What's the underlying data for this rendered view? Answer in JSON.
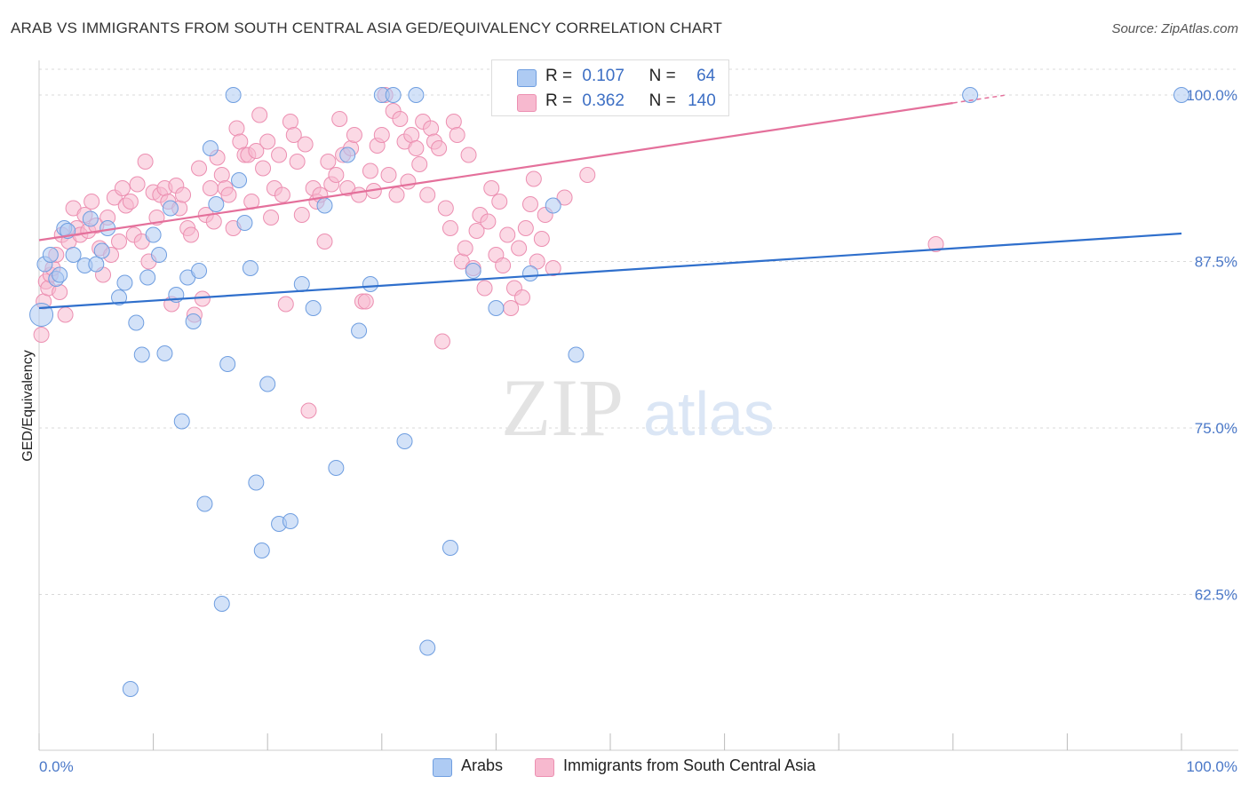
{
  "title": "ARAB VS IMMIGRANTS FROM SOUTH CENTRAL ASIA GED/EQUIVALENCY CORRELATION CHART",
  "source": "Source: ZipAtlas.com",
  "watermark": {
    "zip": "ZIP",
    "atlas": "atlas"
  },
  "legend": {
    "r_label": "R =",
    "n_label": "N =",
    "rows": [
      {
        "r": "0.107",
        "n": "64"
      },
      {
        "r": "0.362",
        "n": "140"
      }
    ]
  },
  "bottom_legend": [
    "Arabs",
    "Immigrants from South Central Asia"
  ],
  "colors": {
    "arab_fill": "#aecbf3",
    "arab_stroke": "#6f9ee0",
    "arab_line": "#2f6fcc",
    "sca_fill": "#f7b9cf",
    "sca_stroke": "#ec8fb1",
    "sca_line": "#e4709b",
    "tick_label": "#4a78c8",
    "grid": "#d9d9d9"
  },
  "chart_data": {
    "type": "scatter",
    "title": "ARAB VS IMMIGRANTS FROM SOUTH CENTRAL ASIA GED/EQUIVALENCY CORRELATION CHART",
    "xlabel": "",
    "ylabel": "GED/Equivalency",
    "xlim": [
      0,
      100
    ],
    "ylim": [
      51,
      102
    ],
    "x_tick_labels": [
      "0.0%",
      "100.0%"
    ],
    "y_ticks": [
      62.5,
      75.0,
      87.5,
      100.0
    ],
    "y_tick_labels": [
      "62.5%",
      "75.0%",
      "87.5%",
      "100.0%"
    ],
    "grid": true,
    "legend_position": "top-center",
    "series": [
      {
        "name": "Arabs",
        "R": 0.107,
        "N": 64,
        "trend": {
          "x": [
            0,
            100
          ],
          "y": [
            84.0,
            89.6
          ]
        },
        "x": [
          0.2,
          0.5,
          1.0,
          1.5,
          1.8,
          2.2,
          2.5,
          3.0,
          4.0,
          4.5,
          5.0,
          5.5,
          6.0,
          7.0,
          7.5,
          8.0,
          8.5,
          9.0,
          9.5,
          10.0,
          10.5,
          11.0,
          11.5,
          12.0,
          12.5,
          13.0,
          13.5,
          14.0,
          14.5,
          15.0,
          15.5,
          16.0,
          16.5,
          17.0,
          17.5,
          18.0,
          18.5,
          19.0,
          19.5,
          20.0,
          21.0,
          22.0,
          23.0,
          24.0,
          25.0,
          26.0,
          27.0,
          28.0,
          29.0,
          30.0,
          31.0,
          32.0,
          33.0,
          34.0,
          36.0,
          38.0,
          40.0,
          43.0,
          45.0,
          47.0,
          48.0,
          51.0,
          81.5,
          100.0
        ],
        "y": [
          83.5,
          87.3,
          88.0,
          86.2,
          86.5,
          90.0,
          89.8,
          88.0,
          87.2,
          90.7,
          87.3,
          88.3,
          90.0,
          84.8,
          85.9,
          55.4,
          82.9,
          80.5,
          86.3,
          89.5,
          88.0,
          80.6,
          91.5,
          85.0,
          75.5,
          86.3,
          83.0,
          86.8,
          69.3,
          96.0,
          91.8,
          61.8,
          79.8,
          100.0,
          93.6,
          90.4,
          87.0,
          70.9,
          65.8,
          78.3,
          67.8,
          68.0,
          85.8,
          84.0,
          91.7,
          72.0,
          95.5,
          82.3,
          85.8,
          100.0,
          100.0,
          74.0,
          100.0,
          58.5,
          66.0,
          86.8,
          84.0,
          86.6,
          91.7,
          80.5,
          100.0,
          100.0,
          100.0,
          100.0
        ]
      },
      {
        "name": "Immigrants from South Central Asia",
        "R": 0.362,
        "N": 140,
        "trend": {
          "x": [
            0,
            80
          ],
          "y": [
            89.1,
            99.4
          ]
        },
        "x": [
          0.2,
          0.4,
          0.6,
          0.8,
          1.0,
          1.2,
          1.5,
          1.8,
          2.0,
          2.3,
          2.6,
          3.0,
          3.3,
          3.6,
          4.0,
          4.3,
          4.6,
          5.0,
          5.3,
          5.6,
          6.0,
          6.3,
          6.6,
          7.0,
          7.3,
          7.6,
          8.0,
          8.3,
          8.6,
          9.0,
          9.3,
          9.6,
          10.0,
          10.3,
          10.6,
          11.0,
          11.3,
          11.6,
          12.0,
          12.3,
          12.6,
          13.0,
          13.3,
          13.6,
          14.0,
          14.3,
          14.6,
          15.0,
          15.3,
          15.6,
          16.0,
          16.3,
          16.6,
          17.0,
          17.3,
          17.6,
          18.0,
          18.3,
          18.6,
          19.0,
          19.3,
          19.6,
          20.0,
          20.3,
          20.6,
          21.0,
          21.3,
          21.6,
          22.0,
          22.3,
          22.6,
          23.0,
          23.3,
          23.6,
          24.0,
          24.3,
          24.6,
          25.0,
          25.3,
          25.6,
          26.0,
          26.3,
          26.6,
          27.0,
          27.3,
          27.6,
          28.0,
          28.3,
          28.6,
          29.0,
          29.3,
          29.6,
          30.0,
          30.3,
          30.6,
          31.0,
          31.3,
          31.6,
          32.0,
          32.3,
          32.6,
          33.0,
          33.3,
          33.6,
          34.0,
          34.3,
          34.6,
          35.0,
          35.3,
          35.6,
          36.0,
          36.3,
          36.6,
          37.0,
          37.3,
          37.6,
          38.0,
          38.3,
          38.6,
          39.0,
          39.3,
          39.6,
          40.0,
          40.3,
          40.6,
          41.0,
          41.3,
          41.6,
          42.0,
          42.3,
          42.6,
          43.0,
          43.3,
          43.6,
          44.0,
          44.3,
          45.0,
          46.0,
          48.0,
          78.5
        ],
        "y": [
          82.0,
          84.5,
          86.0,
          85.5,
          86.5,
          87.0,
          88.0,
          85.2,
          89.5,
          83.5,
          89.0,
          91.5,
          90.0,
          89.5,
          91.0,
          89.8,
          92.0,
          90.2,
          88.5,
          86.5,
          90.8,
          88.0,
          92.3,
          89.0,
          93.0,
          91.7,
          92.0,
          89.5,
          93.3,
          89.0,
          95.0,
          87.5,
          92.7,
          90.8,
          92.5,
          93.0,
          92.0,
          84.3,
          93.2,
          91.5,
          92.5,
          90.0,
          89.5,
          83.5,
          94.5,
          84.7,
          91.0,
          93.0,
          90.5,
          95.3,
          94.0,
          93.0,
          92.5,
          90.0,
          97.5,
          96.5,
          95.5,
          95.5,
          92.0,
          95.8,
          98.5,
          94.5,
          96.5,
          90.8,
          93.0,
          95.5,
          92.5,
          84.3,
          98.0,
          97.0,
          95.0,
          91.0,
          96.3,
          76.3,
          93.0,
          92.0,
          92.5,
          89.0,
          95.0,
          93.3,
          94.0,
          98.2,
          95.5,
          93.0,
          96.0,
          97.0,
          92.5,
          84.5,
          84.5,
          94.3,
          92.8,
          96.2,
          97.0,
          100.0,
          94.0,
          98.8,
          92.5,
          98.2,
          96.5,
          93.5,
          97.0,
          96.0,
          94.8,
          98.0,
          92.5,
          97.5,
          96.5,
          96.0,
          81.5,
          91.5,
          90.0,
          98.0,
          97.0,
          87.5,
          88.5,
          95.5,
          87.0,
          89.8,
          91.0,
          85.5,
          90.5,
          93.0,
          88.0,
          92.0,
          87.2,
          89.5,
          84.0,
          85.5,
          88.5,
          84.8,
          90.0,
          91.8,
          93.7,
          87.5,
          89.2,
          91.0,
          87.0,
          92.3,
          94.0,
          88.8
        ]
      }
    ]
  }
}
